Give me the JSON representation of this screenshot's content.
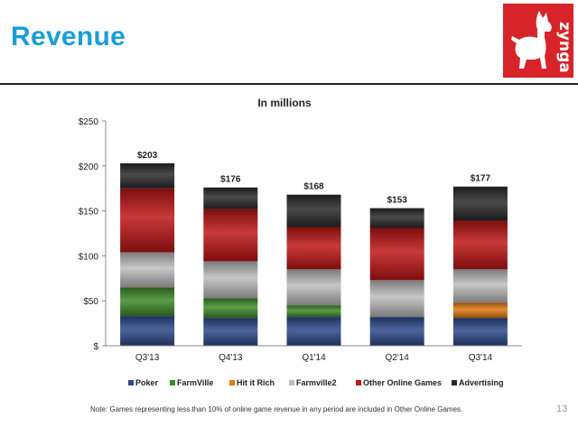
{
  "slide": {
    "title": "Revenue",
    "brand": "zynga",
    "note": "Note: Games representing less than 10% of online game revenue in any period are included in Other Online Games.",
    "page_number": "13"
  },
  "colors": {
    "title": "#1b9dd9",
    "logo_bg": "#d7242a",
    "poker": "#2e4a8a",
    "farmville": "#3f8a2a",
    "hit_it_rich": "#e07a10",
    "farmville2": "#bdbdbd",
    "other_online_games": "#c01616",
    "advertising": "#2a2a2a"
  },
  "chart_data": {
    "type": "bar",
    "stacked": true,
    "title": "In millions",
    "xlabel": "",
    "ylabel": "",
    "categories": [
      "Q3'13",
      "Q4'13",
      "Q1'14",
      "Q2'14",
      "Q3'14"
    ],
    "ylim": [
      0,
      250
    ],
    "yticks": [
      0,
      50,
      100,
      150,
      200,
      250
    ],
    "ytick_labels": [
      "$",
      "$50",
      "$100",
      "$150",
      "$200",
      "$250"
    ],
    "totals": [
      "$203",
      "$176",
      "$168",
      "$153",
      "$177"
    ],
    "legend_position": "bottom",
    "series": [
      {
        "name": "Poker",
        "key": "poker",
        "values": [
          33,
          31,
          32,
          32,
          31
        ]
      },
      {
        "name": "FarmVille",
        "key": "farmville",
        "values": [
          32,
          22,
          13,
          0,
          0
        ]
      },
      {
        "name": "Hit it Rich",
        "key": "hit_it_rich",
        "values": [
          0,
          0,
          0,
          0,
          17
        ]
      },
      {
        "name": "Farmville2",
        "key": "farmville2",
        "values": [
          39,
          41,
          40,
          41,
          37
        ]
      },
      {
        "name": "Other Online Games",
        "key": "other_online_games",
        "values": [
          71,
          58,
          47,
          58,
          54
        ]
      },
      {
        "name": "Advertising",
        "key": "advertising",
        "values": [
          28,
          24,
          36,
          22,
          38
        ]
      }
    ]
  }
}
